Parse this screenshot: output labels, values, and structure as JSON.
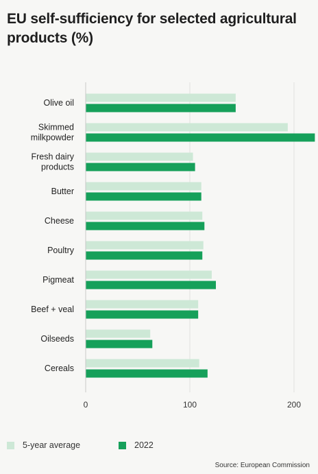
{
  "title": "EU self-sufficiency for selected agricultural products (%)",
  "source": "Source: European Commission",
  "colors": {
    "avg": "#cde8d6",
    "current": "#16a05a",
    "grid": "#e0e0e0",
    "bg": "#f7f7f5"
  },
  "chart_data": {
    "type": "bar",
    "orientation": "horizontal",
    "title": "EU self-sufficiency for selected agricultural products (%)",
    "categories": [
      [
        "Olive oil"
      ],
      [
        "Skimmed",
        "milkpowder"
      ],
      [
        "Fresh dairy",
        "products"
      ],
      [
        "Butter"
      ],
      [
        "Cheese"
      ],
      [
        "Poultry"
      ],
      [
        "Pigmeat"
      ],
      [
        "Beef + veal"
      ],
      [
        "Oilseeds"
      ],
      [
        "Cereals"
      ]
    ],
    "series": [
      {
        "name": "5-year average",
        "color": "#cde8d6",
        "values": [
          144,
          194,
          103,
          111,
          112,
          113,
          121,
          108,
          62,
          109
        ]
      },
      {
        "name": "2022",
        "color": "#16a05a",
        "values": [
          144,
          220,
          105,
          111,
          114,
          112,
          125,
          108,
          64,
          117
        ]
      }
    ],
    "xticks": [
      0,
      100,
      200
    ],
    "xlim": [
      0,
      220
    ],
    "grid": true,
    "legend_position": "bottom-left"
  }
}
